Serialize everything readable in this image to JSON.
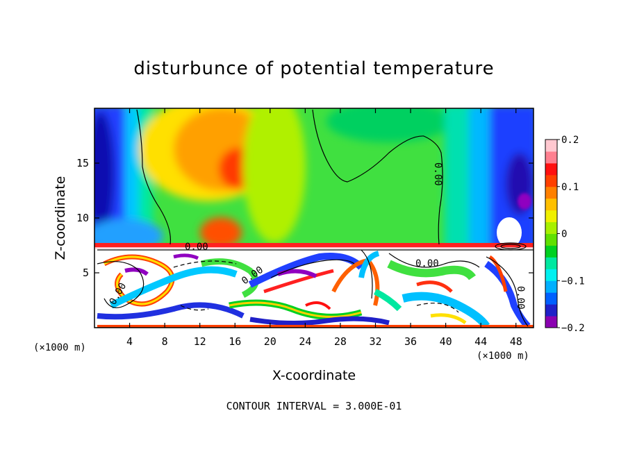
{
  "chart_data": {
    "type": "heatmap",
    "title": "disturbunce of potential temperature",
    "xlabel": "X-coordinate",
    "ylabel": "Z-coordinate",
    "xlim": [
      0,
      50
    ],
    "ylim": [
      0,
      20
    ],
    "x_ticks": [
      4,
      8,
      12,
      16,
      20,
      24,
      28,
      32,
      36,
      40,
      44,
      48
    ],
    "y_ticks": [
      5,
      10,
      15
    ],
    "x_unit_left": "(×1000 m)",
    "x_unit_right": "(×1000 m)",
    "colorbar": {
      "range": [
        -0.2,
        0.2
      ],
      "tick_values": [
        0.2,
        0.1,
        0,
        -0.1,
        -0.2
      ],
      "tick_labels": [
        "0.2",
        "0.1",
        "0",
        "−0.1",
        "−0.2"
      ],
      "colors": [
        "#8a00b0",
        "#2020c8",
        "#0060ff",
        "#00b0ff",
        "#00f0f0",
        "#00e8a0",
        "#00d020",
        "#60e000",
        "#a8f000",
        "#f0f000",
        "#ffc000",
        "#ff8000",
        "#ff4000",
        "#ff1010",
        "#ff8090",
        "#ffc8d0"
      ]
    },
    "contour_labels": [
      "0.00",
      "0.00",
      "0.00",
      "0.00",
      "0.00",
      "0.00"
    ],
    "footer": "CONTOUR INTERVAL = 3.000E-01"
  }
}
